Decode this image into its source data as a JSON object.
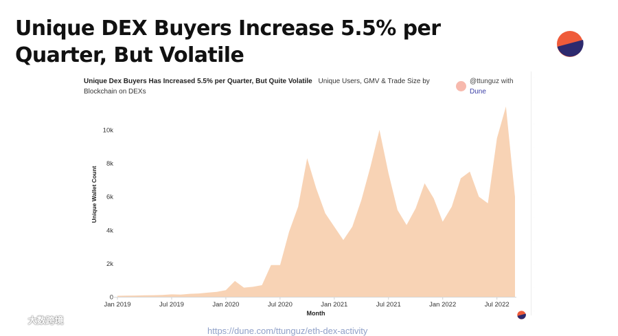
{
  "slide": {
    "title": "Unique DEX Buyers Increase 5.5% per Quarter, But Volatile",
    "source_url": "https://dune.com/ttunguz/eth-dex-activity"
  },
  "chart_header": {
    "title": "Unique Dex Buyers Has Increased 5.5% per Quarter, But Quite Volatile",
    "subtitle": "Unique Users, GMV & Trade Size by Blockchain on DEXs"
  },
  "credit": {
    "author": "@ttunguz with",
    "platform": "Dune"
  },
  "watermark": {
    "text": "大数跨境"
  },
  "colors": {
    "area_fill": "#f8d3b5",
    "accent_orange": "#ef5b3a",
    "accent_navy": "#2d2a6e"
  },
  "chart_data": {
    "type": "area",
    "title": "Unique Dex Buyers Has Increased 5.5% per Quarter, But Quite Volatile",
    "xlabel": "Month",
    "ylabel": "Unique Wallet Count",
    "ylim": [
      0,
      11000
    ],
    "y_ticks": [
      0,
      2000,
      4000,
      6000,
      8000,
      10000
    ],
    "y_tick_labels": [
      "0",
      "2k",
      "4k",
      "6k",
      "8k",
      "10k"
    ],
    "x_tick_labels": [
      "Jan 2019",
      "Jul 2019",
      "Jan 2020",
      "Jul 2020",
      "Jan 2021",
      "Jul 2021",
      "Jan 2022",
      "Jul 2022"
    ],
    "x_tick_index": [
      0,
      6,
      12,
      18,
      24,
      30,
      36,
      42
    ],
    "grid": false,
    "series": [
      {
        "name": "Unique Wallet Count",
        "x": [
          "Jan 2019",
          "Feb 2019",
          "Mar 2019",
          "Apr 2019",
          "May 2019",
          "Jun 2019",
          "Jul 2019",
          "Aug 2019",
          "Sep 2019",
          "Oct 2019",
          "Nov 2019",
          "Dec 2019",
          "Jan 2020",
          "Feb 2020",
          "Mar 2020",
          "Apr 2020",
          "May 2020",
          "Jun 2020",
          "Jul 2020",
          "Aug 2020",
          "Sep 2020",
          "Oct 2020",
          "Nov 2020",
          "Dec 2020",
          "Jan 2021",
          "Feb 2021",
          "Mar 2021",
          "Apr 2021",
          "May 2021",
          "Jun 2021",
          "Jul 2021",
          "Aug 2021",
          "Sep 2021",
          "Oct 2021",
          "Nov 2021",
          "Dec 2021",
          "Jan 2022",
          "Feb 2022",
          "Mar 2022",
          "Apr 2022",
          "May 2022",
          "Jun 2022",
          "Jul 2022",
          "Aug 2022",
          "Sep 2022"
        ],
        "values": [
          60,
          70,
          80,
          90,
          100,
          110,
          150,
          130,
          180,
          200,
          250,
          300,
          400,
          950,
          550,
          600,
          700,
          1900,
          1900,
          3900,
          5400,
          8300,
          6500,
          5000,
          4200,
          3400,
          4200,
          5800,
          7800,
          10000,
          7400,
          5200,
          4300,
          5300,
          6800,
          5900,
          4500,
          5400,
          7100,
          7500,
          6000,
          5600,
          9500,
          11400,
          6000
        ]
      }
    ]
  }
}
